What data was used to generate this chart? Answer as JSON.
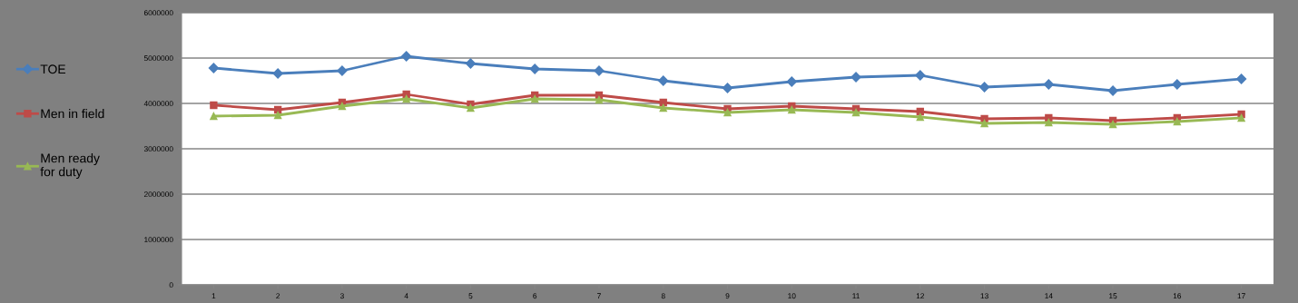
{
  "chart_data": {
    "type": "line",
    "categories": [
      "1",
      "2",
      "3",
      "4",
      "5",
      "6",
      "7",
      "8",
      "9",
      "10",
      "11",
      "12",
      "13",
      "14",
      "15",
      "16",
      "17"
    ],
    "series": [
      {
        "name": "TOE",
        "color": "#4a7ebb",
        "marker": "diamond",
        "values": [
          4780000,
          4660000,
          4720000,
          5040000,
          4880000,
          4760000,
          4720000,
          4500000,
          4340000,
          4480000,
          4580000,
          4620000,
          4360000,
          4420000,
          4280000,
          4420000,
          4540000
        ]
      },
      {
        "name": "Men in field",
        "color": "#be4b48",
        "marker": "square",
        "values": [
          3960000,
          3860000,
          4020000,
          4200000,
          3980000,
          4180000,
          4180000,
          4020000,
          3880000,
          3940000,
          3880000,
          3820000,
          3660000,
          3680000,
          3620000,
          3680000,
          3760000
        ]
      },
      {
        "name": "Men ready\nfor duty",
        "color": "#98b954",
        "marker": "triangle",
        "values": [
          3720000,
          3740000,
          3940000,
          4100000,
          3900000,
          4100000,
          4080000,
          3900000,
          3800000,
          3860000,
          3800000,
          3700000,
          3560000,
          3580000,
          3540000,
          3600000,
          3680000
        ]
      }
    ],
    "ylim": [
      0,
      6000000
    ],
    "yticks": [
      0,
      1000000,
      2000000,
      3000000,
      4000000,
      5000000,
      6000000
    ],
    "grid": "y",
    "legend": "left",
    "line_style": "solid"
  }
}
